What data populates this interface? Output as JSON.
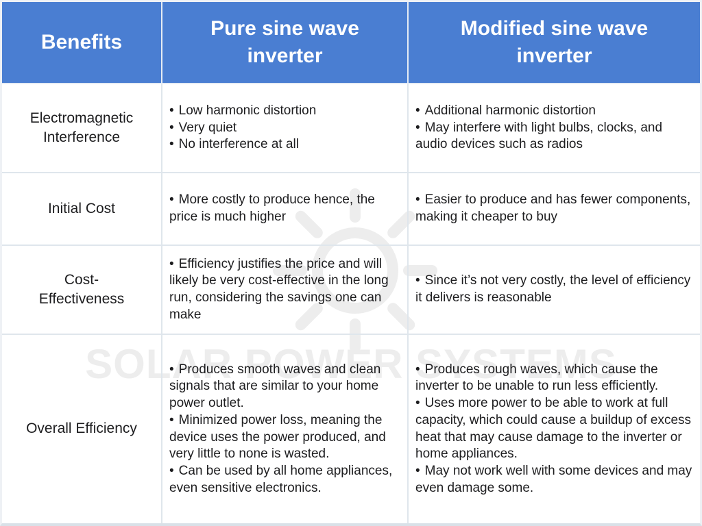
{
  "watermark": {
    "text": "SOLAR POWER SYSTEMS",
    "icon": "sun-icon"
  },
  "colors": {
    "header_bg": "#4a7ed2",
    "header_text": "#ffffff",
    "body_text": "#1d1d1f",
    "grid_line": "#dfe6ec",
    "watermark": "#ededed",
    "page_bg": "#ffffff"
  },
  "table": {
    "bullet_char": "•",
    "columns": [
      "Benefits",
      "Pure sine wave\ninverter",
      "Modified sine wave\ninverter"
    ],
    "rows": [
      {
        "benefit": "Electromagnetic\nInterference",
        "pure": [
          "Low harmonic distortion",
          "Very quiet",
          "No interference at all"
        ],
        "modified": [
          "Additional harmonic distortion",
          "May interfere with light bulbs, clocks, and audio devices such as radios"
        ]
      },
      {
        "benefit": "Initial Cost",
        "pure": [
          "More costly to produce hence, the price is much higher"
        ],
        "modified": [
          "Easier to produce and has fewer components, making it cheaper to buy"
        ]
      },
      {
        "benefit": "Cost-\nEffectiveness",
        "pure": [
          "Efficiency justifies the price and will likely be very cost-effective in the long run, considering the savings one can make"
        ],
        "modified": [
          "Since it’s not very costly, the level of efficiency it delivers is reasonable"
        ]
      },
      {
        "benefit": "Overall Efficiency",
        "pure": [
          "Produces smooth waves and clean signals that are similar to your home power outlet.",
          "Minimized power loss, meaning the device uses the power produced, and very little to none is wasted.",
          "Can be used by all home appliances, even sensitive electronics."
        ],
        "modified": [
          "Produces rough waves, which cause the inverter to be unable to run less efficiently.",
          "Uses more power to be able to work at full capacity, which could cause a buildup of excess heat that may cause damage to the inverter or home appliances.",
          "May not work well with some devices and may even damage some."
        ]
      }
    ]
  }
}
